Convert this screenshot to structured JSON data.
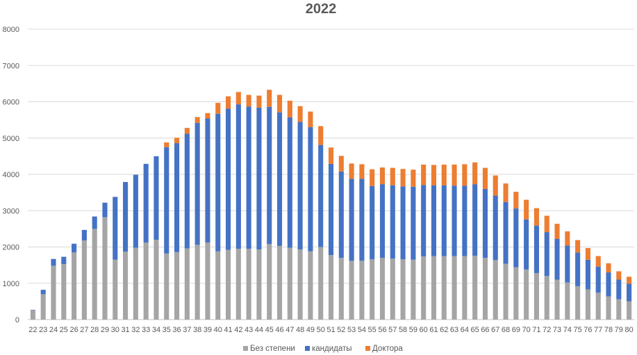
{
  "chart_data": {
    "type": "bar",
    "stacked": true,
    "title": "2022",
    "xlabel": "",
    "ylabel": "",
    "ylim": [
      0,
      8000
    ],
    "yticks": [
      0,
      1000,
      2000,
      3000,
      4000,
      5000,
      6000,
      7000,
      8000
    ],
    "grid": true,
    "legend_position": "bottom",
    "categories": [
      "22",
      "23",
      "24",
      "25",
      "26",
      "27",
      "28",
      "29",
      "30",
      "31",
      "32",
      "33",
      "34",
      "35",
      "36",
      "37",
      "38",
      "39",
      "40",
      "41",
      "42",
      "43",
      "44",
      "45",
      "46",
      "47",
      "48",
      "49",
      "50",
      "51",
      "52",
      "53",
      "54",
      "55",
      "56",
      "57",
      "58",
      "59",
      "60",
      "61",
      "62",
      "63",
      "64",
      "65",
      "66",
      "67",
      "68",
      "69",
      "70",
      "71",
      "72",
      "73",
      "74",
      "75",
      "76",
      "77",
      "78",
      "79",
      "80"
    ],
    "series": [
      {
        "name": "Без степени",
        "color": "#a5a5a5",
        "values": [
          260,
          700,
          1480,
          1530,
          1850,
          2180,
          2500,
          2820,
          1650,
          1870,
          1980,
          2120,
          2200,
          1820,
          1860,
          1960,
          2060,
          2120,
          1880,
          1920,
          1950,
          1950,
          1930,
          2080,
          2030,
          1980,
          1930,
          1880,
          2000,
          1780,
          1700,
          1620,
          1620,
          1660,
          1700,
          1680,
          1660,
          1650,
          1740,
          1750,
          1750,
          1750,
          1750,
          1760,
          1700,
          1640,
          1540,
          1440,
          1380,
          1280,
          1200,
          1100,
          1020,
          920,
          830,
          740,
          640,
          560,
          500
        ]
      },
      {
        "name": "кандидаты",
        "color": "#4472c4",
        "values": [
          10,
          120,
          190,
          200,
          240,
          290,
          340,
          400,
          1730,
          1920,
          2010,
          2170,
          2300,
          2930,
          3000,
          3160,
          3360,
          3420,
          3790,
          3890,
          3980,
          3920,
          3910,
          3780,
          3680,
          3590,
          3520,
          3420,
          2810,
          2510,
          2380,
          2260,
          2260,
          2020,
          2030,
          2020,
          2010,
          2010,
          1970,
          1950,
          1950,
          1940,
          1940,
          1970,
          1900,
          1780,
          1700,
          1620,
          1380,
          1310,
          1210,
          1120,
          1020,
          930,
          820,
          720,
          660,
          540,
          490
        ]
      },
      {
        "name": "Доктора",
        "color": "#ed7d31",
        "values": [
          0,
          0,
          0,
          0,
          0,
          0,
          0,
          0,
          0,
          0,
          0,
          0,
          0,
          130,
          150,
          160,
          160,
          150,
          300,
          340,
          340,
          320,
          330,
          470,
          480,
          460,
          430,
          430,
          520,
          450,
          430,
          420,
          400,
          460,
          460,
          480,
          480,
          470,
          560,
          560,
          570,
          580,
          590,
          600,
          580,
          550,
          510,
          460,
          540,
          480,
          450,
          420,
          390,
          340,
          320,
          290,
          250,
          230,
          190
        ]
      }
    ]
  }
}
